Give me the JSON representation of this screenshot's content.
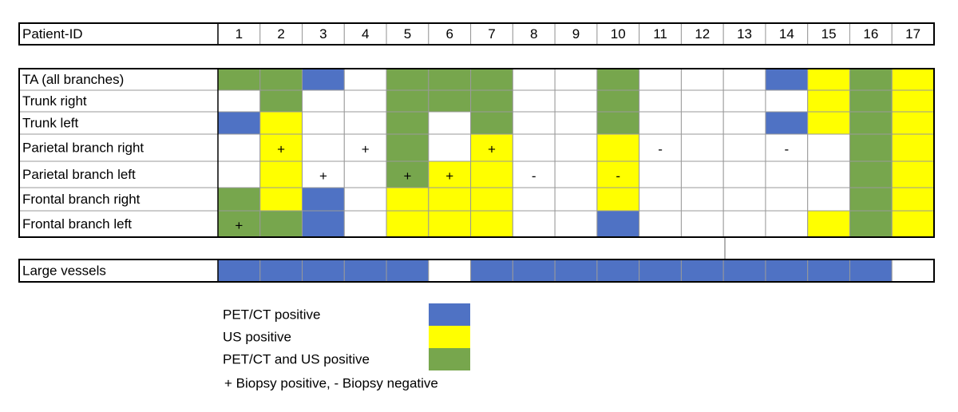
{
  "header": {
    "label": "Patient-ID",
    "patient_ids": [
      1,
      2,
      3,
      4,
      5,
      6,
      7,
      8,
      9,
      10,
      11,
      12,
      13,
      14,
      15,
      16,
      17
    ]
  },
  "main": {
    "rows": [
      {
        "label": "TA (all branches)",
        "cells": [
          {
            "color": "#77a64d"
          },
          {
            "color": "#77a64d"
          },
          {
            "color": "#4f72c4"
          },
          {
            "color": "#ffffff"
          },
          {
            "color": "#77a64d"
          },
          {
            "color": "#77a64d"
          },
          {
            "color": "#77a64d"
          },
          {
            "color": "#ffffff"
          },
          {
            "color": "#ffffff"
          },
          {
            "color": "#77a64d"
          },
          {
            "color": "#ffffff"
          },
          {
            "color": "#ffffff"
          },
          {
            "color": "#ffffff"
          },
          {
            "color": "#4f72c4"
          },
          {
            "color": "#ffff00"
          },
          {
            "color": "#77a64d"
          },
          {
            "color": "#ffff00"
          }
        ]
      },
      {
        "label": "Trunk right",
        "cells": [
          {
            "color": "#ffffff"
          },
          {
            "color": "#77a64d"
          },
          {
            "color": "#ffffff"
          },
          {
            "color": "#ffffff"
          },
          {
            "color": "#77a64d"
          },
          {
            "color": "#77a64d"
          },
          {
            "color": "#77a64d"
          },
          {
            "color": "#ffffff"
          },
          {
            "color": "#ffffff"
          },
          {
            "color": "#77a64d"
          },
          {
            "color": "#ffffff"
          },
          {
            "color": "#ffffff"
          },
          {
            "color": "#ffffff"
          },
          {
            "color": "#ffffff"
          },
          {
            "color": "#ffff00"
          },
          {
            "color": "#77a64d"
          },
          {
            "color": "#ffff00"
          }
        ]
      },
      {
        "label": "Trunk left",
        "cells": [
          {
            "color": "#4f72c4"
          },
          {
            "color": "#ffff00"
          },
          {
            "color": "#ffffff"
          },
          {
            "color": "#ffffff"
          },
          {
            "color": "#77a64d"
          },
          {
            "color": "#ffffff"
          },
          {
            "color": "#77a64d"
          },
          {
            "color": "#ffffff"
          },
          {
            "color": "#ffffff"
          },
          {
            "color": "#77a64d"
          },
          {
            "color": "#ffffff"
          },
          {
            "color": "#ffffff"
          },
          {
            "color": "#ffffff"
          },
          {
            "color": "#4f72c4"
          },
          {
            "color": "#ffff00"
          },
          {
            "color": "#77a64d"
          },
          {
            "color": "#ffff00"
          }
        ]
      },
      {
        "label": "Parietal branch right",
        "cells": [
          {
            "color": "#ffffff"
          },
          {
            "color": "#ffff00",
            "mark": "+"
          },
          {
            "color": "#ffffff"
          },
          {
            "color": "#ffffff",
            "mark": "+"
          },
          {
            "color": "#77a64d"
          },
          {
            "color": "#ffffff"
          },
          {
            "color": "#ffff00",
            "mark": "+"
          },
          {
            "color": "#ffffff"
          },
          {
            "color": "#ffffff"
          },
          {
            "color": "#ffff00"
          },
          {
            "color": "#ffffff",
            "mark": "-"
          },
          {
            "color": "#ffffff"
          },
          {
            "color": "#ffffff"
          },
          {
            "color": "#ffffff",
            "mark": "-"
          },
          {
            "color": "#ffffff"
          },
          {
            "color": "#77a64d"
          },
          {
            "color": "#ffff00"
          }
        ]
      },
      {
        "label": "Parietal branch left",
        "cells": [
          {
            "color": "#ffffff"
          },
          {
            "color": "#ffff00"
          },
          {
            "color": "#ffffff",
            "mark": "+"
          },
          {
            "color": "#ffffff"
          },
          {
            "color": "#77a64d",
            "mark": "+"
          },
          {
            "color": "#ffff00",
            "mark": "+"
          },
          {
            "color": "#ffff00"
          },
          {
            "color": "#ffffff",
            "mark": "-"
          },
          {
            "color": "#ffffff"
          },
          {
            "color": "#ffff00",
            "mark": "-"
          },
          {
            "color": "#ffffff"
          },
          {
            "color": "#ffffff"
          },
          {
            "color": "#ffffff"
          },
          {
            "color": "#ffffff"
          },
          {
            "color": "#ffffff"
          },
          {
            "color": "#77a64d"
          },
          {
            "color": "#ffff00"
          }
        ]
      },
      {
        "label": "Frontal branch right",
        "cells": [
          {
            "color": "#77a64d"
          },
          {
            "color": "#ffff00"
          },
          {
            "color": "#4f72c4"
          },
          {
            "color": "#ffffff"
          },
          {
            "color": "#ffff00"
          },
          {
            "color": "#ffff00"
          },
          {
            "color": "#ffff00"
          },
          {
            "color": "#ffffff"
          },
          {
            "color": "#ffffff"
          },
          {
            "color": "#ffff00"
          },
          {
            "color": "#ffffff"
          },
          {
            "color": "#ffffff"
          },
          {
            "color": "#ffffff"
          },
          {
            "color": "#ffffff"
          },
          {
            "color": "#ffffff"
          },
          {
            "color": "#77a64d"
          },
          {
            "color": "#ffff00"
          }
        ]
      },
      {
        "label": "Frontal branch left",
        "cells": [
          {
            "color": "#77a64d",
            "mark": "+"
          },
          {
            "color": "#77a64d"
          },
          {
            "color": "#4f72c4"
          },
          {
            "color": "#ffffff"
          },
          {
            "color": "#ffff00"
          },
          {
            "color": "#ffff00"
          },
          {
            "color": "#ffff00"
          },
          {
            "color": "#ffffff"
          },
          {
            "color": "#ffffff"
          },
          {
            "color": "#4f72c4"
          },
          {
            "color": "#ffffff"
          },
          {
            "color": "#ffffff"
          },
          {
            "color": "#ffffff"
          },
          {
            "color": "#ffffff"
          },
          {
            "color": "#ffff00"
          },
          {
            "color": "#77a64d"
          },
          {
            "color": "#ffff00"
          }
        ]
      }
    ]
  },
  "large_vessels": {
    "label": "Large vessels",
    "cells": [
      {
        "color": "#4f72c4"
      },
      {
        "color": "#4f72c4"
      },
      {
        "color": "#4f72c4"
      },
      {
        "color": "#4f72c4"
      },
      {
        "color": "#4f72c4"
      },
      {
        "color": "#ffffff"
      },
      {
        "color": "#4f72c4"
      },
      {
        "color": "#4f72c4"
      },
      {
        "color": "#4f72c4"
      },
      {
        "color": "#4f72c4"
      },
      {
        "color": "#4f72c4"
      },
      {
        "color": "#4f72c4"
      },
      {
        "color": "#4f72c4"
      },
      {
        "color": "#4f72c4"
      },
      {
        "color": "#4f72c4"
      },
      {
        "color": "#4f72c4"
      },
      {
        "color": "#ffffff"
      }
    ]
  },
  "legend": {
    "items": [
      {
        "label": "PET/CT positive",
        "color": "#4f72c4"
      },
      {
        "label": "US positive",
        "color": "#ffff00"
      },
      {
        "label": "PET/CT and US positive",
        "color": "#77a64d"
      }
    ],
    "note": "+ Biopsy positive, - Biopsy negative"
  }
}
